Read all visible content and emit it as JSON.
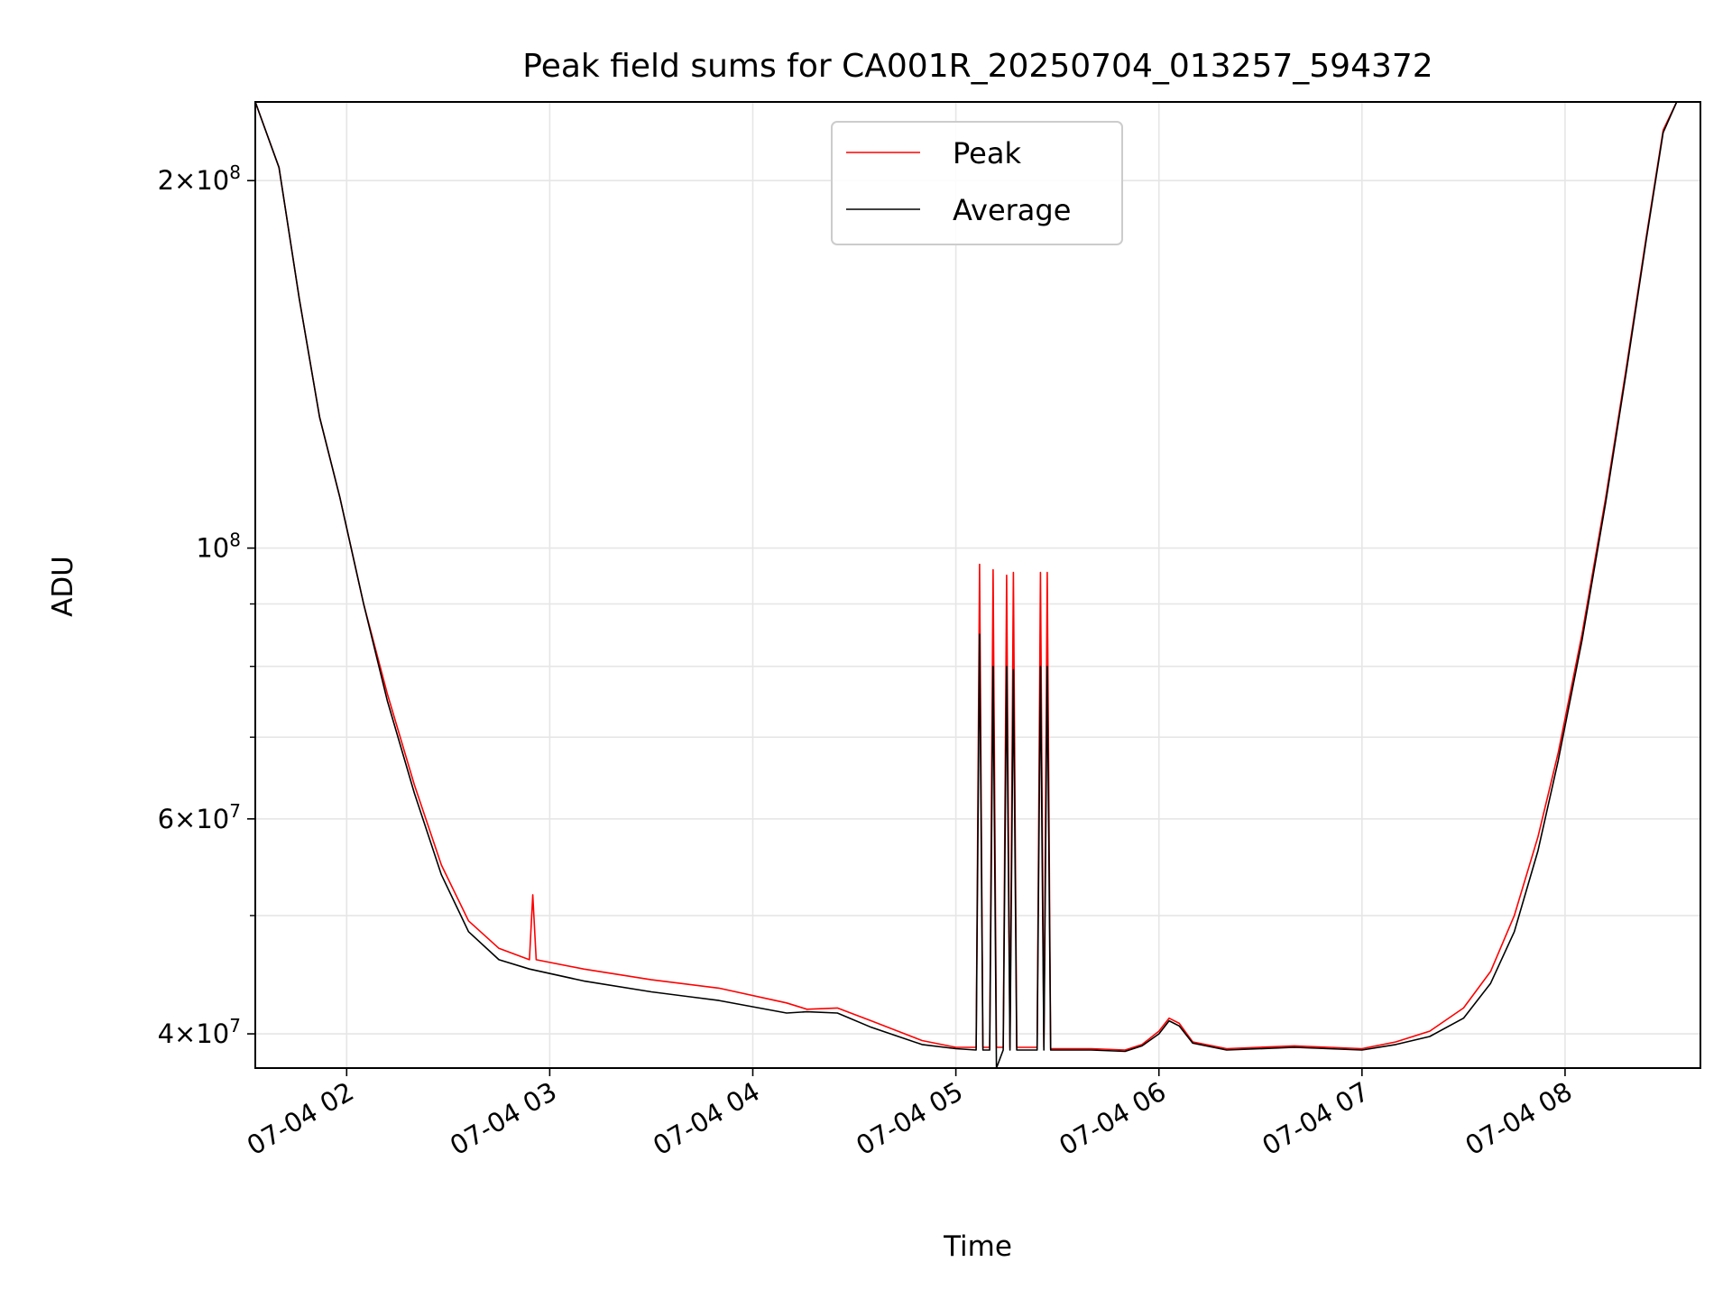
{
  "chart_data": {
    "type": "line",
    "title": "Peak field sums for CA001R_20250704_013257_594372",
    "xlabel": "Time",
    "ylabel": "ADU",
    "yscale": "log",
    "grid": true,
    "legend_position": "top-center",
    "xlim": [
      "07-04 01:33",
      "07-04 08:40"
    ],
    "ylim": [
      37500000,
      232000000
    ],
    "x_ticks": [
      "07-04 02",
      "07-04 03",
      "07-04 04",
      "07-04 05",
      "07-04 06",
      "07-04 07",
      "07-04 08"
    ],
    "y_ticks": [
      {
        "value": 40000000,
        "mantissa": "4",
        "exp": "7"
      },
      {
        "value": 60000000,
        "mantissa": "6",
        "exp": "7"
      },
      {
        "value": 100000000,
        "mantissa": "",
        "exp": "8"
      },
      {
        "value": 200000000,
        "mantissa": "2",
        "exp": "8"
      }
    ],
    "series": [
      {
        "name": "Peak",
        "color": "#ff0000",
        "points": [
          [
            "07-04 01:33",
            232000000
          ],
          [
            "07-04 01:40",
            205000000
          ],
          [
            "07-04 01:46",
            160000000
          ],
          [
            "07-04 01:52",
            128000000
          ],
          [
            "07-04 01:58",
            110000000
          ],
          [
            "07-04 02:05",
            90000000
          ],
          [
            "07-04 02:12",
            76000000
          ],
          [
            "07-04 02:20",
            64000000
          ],
          [
            "07-04 02:28",
            55000000
          ],
          [
            "07-04 02:36",
            49500000
          ],
          [
            "07-04 02:45",
            47000000
          ],
          [
            "07-04 02:54",
            46000000
          ],
          [
            "07-04 02:55",
            52000000
          ],
          [
            "07-04 02:56",
            46000000
          ],
          [
            "07-04 03:10",
            45200000
          ],
          [
            "07-04 03:30",
            44300000
          ],
          [
            "07-04 03:50",
            43600000
          ],
          [
            "07-04 04:10",
            42400000
          ],
          [
            "07-04 04:16",
            41900000
          ],
          [
            "07-04 04:25",
            42000000
          ],
          [
            "07-04 04:35",
            41000000
          ],
          [
            "07-04 04:50",
            39500000
          ],
          [
            "07-04 05:00",
            39000000
          ],
          [
            "07-04 05:06",
            39000000
          ],
          [
            "07-04 05:07",
            97000000
          ],
          [
            "07-04 05:08",
            39000000
          ],
          [
            "07-04 05:10",
            39000000
          ],
          [
            "07-04 05:11",
            96000000
          ],
          [
            "07-04 05:12",
            39000000
          ],
          [
            "07-04 05:14",
            39000000
          ],
          [
            "07-04 05:15",
            95000000
          ],
          [
            "07-04 05:16",
            39000000
          ],
          [
            "07-04 05:16",
            39000000
          ],
          [
            "07-04 05:17",
            95500000
          ],
          [
            "07-04 05:18",
            39000000
          ],
          [
            "07-04 05:24",
            39000000
          ],
          [
            "07-04 05:25",
            95500000
          ],
          [
            "07-04 05:26",
            39000000
          ],
          [
            "07-04 05:26",
            39000000
          ],
          [
            "07-04 05:27",
            95500000
          ],
          [
            "07-04 05:28",
            38900000
          ],
          [
            "07-04 05:40",
            38900000
          ],
          [
            "07-04 05:50",
            38800000
          ],
          [
            "07-04 05:55",
            39200000
          ],
          [
            "07-04 06:00",
            40200000
          ],
          [
            "07-04 06:03",
            41200000
          ],
          [
            "07-04 06:06",
            40800000
          ],
          [
            "07-04 06:10",
            39400000
          ],
          [
            "07-04 06:20",
            38900000
          ],
          [
            "07-04 06:40",
            39100000
          ],
          [
            "07-04 07:00",
            38900000
          ],
          [
            "07-04 07:10",
            39400000
          ],
          [
            "07-04 07:20",
            40200000
          ],
          [
            "07-04 07:30",
            42000000
          ],
          [
            "07-04 07:38",
            45000000
          ],
          [
            "07-04 07:45",
            50000000
          ],
          [
            "07-04 07:52",
            58000000
          ],
          [
            "07-04 07:58",
            68000000
          ],
          [
            "07-04 08:05",
            85000000
          ],
          [
            "07-04 08:12",
            110000000
          ],
          [
            "07-04 08:18",
            140000000
          ],
          [
            "07-04 08:24",
            180000000
          ],
          [
            "07-04 08:29",
            220000000
          ],
          [
            "07-04 08:33",
            232000000
          ],
          [
            "07-04 08:40",
            232000000
          ]
        ]
      },
      {
        "name": "Average",
        "color": "#000000",
        "points": [
          [
            "07-04 01:33",
            232000000
          ],
          [
            "07-04 01:40",
            205000000
          ],
          [
            "07-04 01:46",
            160000000
          ],
          [
            "07-04 01:52",
            128000000
          ],
          [
            "07-04 01:58",
            110000000
          ],
          [
            "07-04 02:05",
            90000000
          ],
          [
            "07-04 02:12",
            75000000
          ],
          [
            "07-04 02:20",
            63000000
          ],
          [
            "07-04 02:28",
            54000000
          ],
          [
            "07-04 02:36",
            48500000
          ],
          [
            "07-04 02:45",
            46000000
          ],
          [
            "07-04 02:54",
            45200000
          ],
          [
            "07-04 03:10",
            44200000
          ],
          [
            "07-04 03:30",
            43300000
          ],
          [
            "07-04 03:50",
            42600000
          ],
          [
            "07-04 04:10",
            41600000
          ],
          [
            "07-04 04:16",
            41700000
          ],
          [
            "07-04 04:25",
            41600000
          ],
          [
            "07-04 04:35",
            40500000
          ],
          [
            "07-04 04:50",
            39200000
          ],
          [
            "07-04 05:00",
            38900000
          ],
          [
            "07-04 05:06",
            38800000
          ],
          [
            "07-04 05:07",
            85000000
          ],
          [
            "07-04 05:08",
            38800000
          ],
          [
            "07-04 05:10",
            38800000
          ],
          [
            "07-04 05:11",
            80000000
          ],
          [
            "07-04 05:12",
            36500000
          ],
          [
            "07-04 05:14",
            38800000
          ],
          [
            "07-04 05:15",
            80000000
          ],
          [
            "07-04 05:16",
            38800000
          ],
          [
            "07-04 05:16",
            38800000
          ],
          [
            "07-04 05:17",
            79500000
          ],
          [
            "07-04 05:18",
            38800000
          ],
          [
            "07-04 05:24",
            38800000
          ],
          [
            "07-04 05:25",
            80000000
          ],
          [
            "07-04 05:26",
            38800000
          ],
          [
            "07-04 05:26",
            38800000
          ],
          [
            "07-04 05:27",
            80000000
          ],
          [
            "07-04 05:28",
            38800000
          ],
          [
            "07-04 05:40",
            38800000
          ],
          [
            "07-04 05:50",
            38700000
          ],
          [
            "07-04 05:55",
            39100000
          ],
          [
            "07-04 06:00",
            40000000
          ],
          [
            "07-04 06:03",
            41000000
          ],
          [
            "07-04 06:06",
            40600000
          ],
          [
            "07-04 06:10",
            39300000
          ],
          [
            "07-04 06:20",
            38800000
          ],
          [
            "07-04 06:40",
            39000000
          ],
          [
            "07-04 07:00",
            38800000
          ],
          [
            "07-04 07:10",
            39200000
          ],
          [
            "07-04 07:20",
            39800000
          ],
          [
            "07-04 07:30",
            41200000
          ],
          [
            "07-04 07:38",
            44000000
          ],
          [
            "07-04 07:45",
            48500000
          ],
          [
            "07-04 07:52",
            56500000
          ],
          [
            "07-04 07:58",
            67000000
          ],
          [
            "07-04 08:05",
            84000000
          ],
          [
            "07-04 08:12",
            109000000
          ],
          [
            "07-04 08:18",
            139000000
          ],
          [
            "07-04 08:24",
            179000000
          ],
          [
            "07-04 08:29",
            219000000
          ],
          [
            "07-04 08:33",
            232000000
          ],
          [
            "07-04 08:40",
            232000000
          ]
        ]
      }
    ]
  }
}
